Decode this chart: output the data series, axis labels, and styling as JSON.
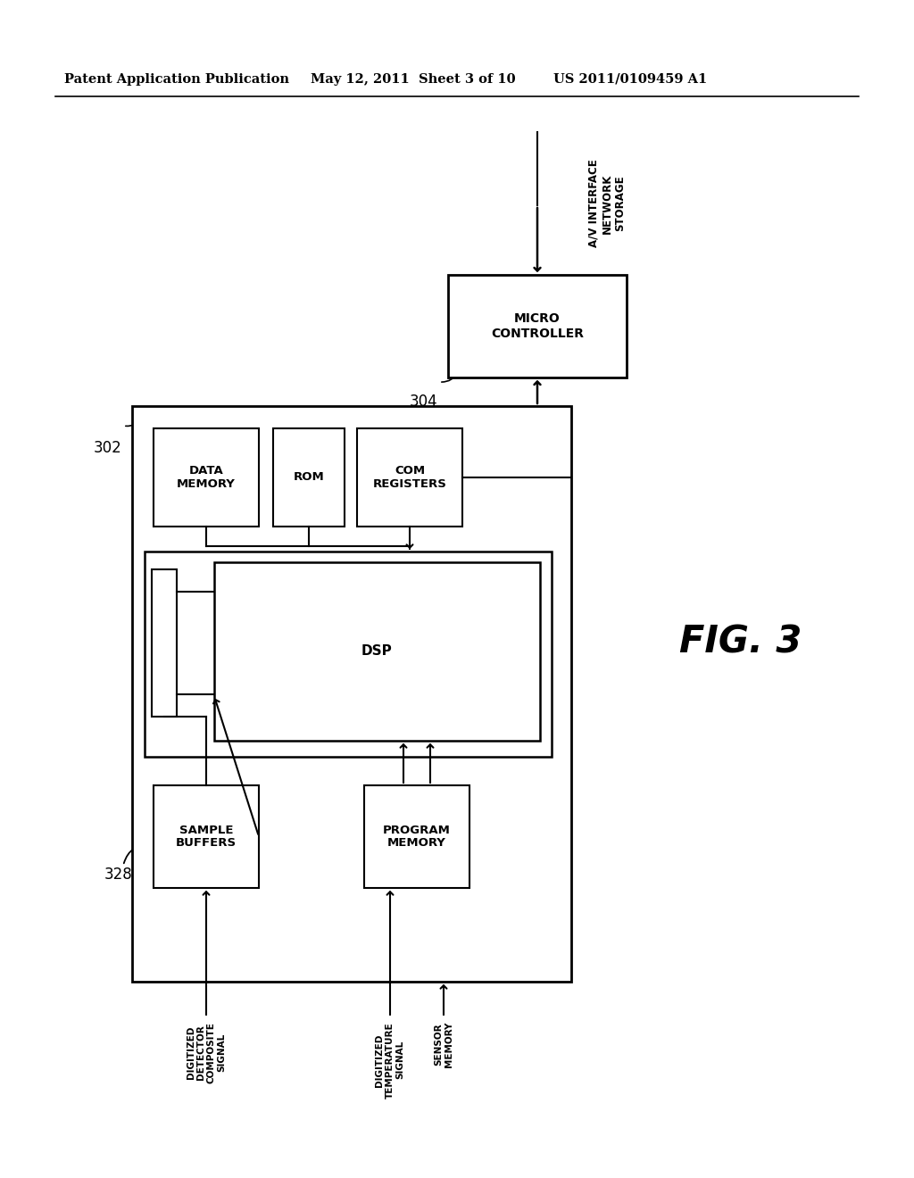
{
  "bg_color": "#ffffff",
  "header_left": "Patent Application Publication",
  "header_mid": "May 12, 2011  Sheet 3 of 10",
  "header_right": "US 2011/0109459 A1",
  "fig_label": "FIG. 3",
  "label_302": "302",
  "label_304": "304",
  "label_328": "328",
  "av_text": "A/V INTERFACE\nNETWORK\nSTORAGE"
}
